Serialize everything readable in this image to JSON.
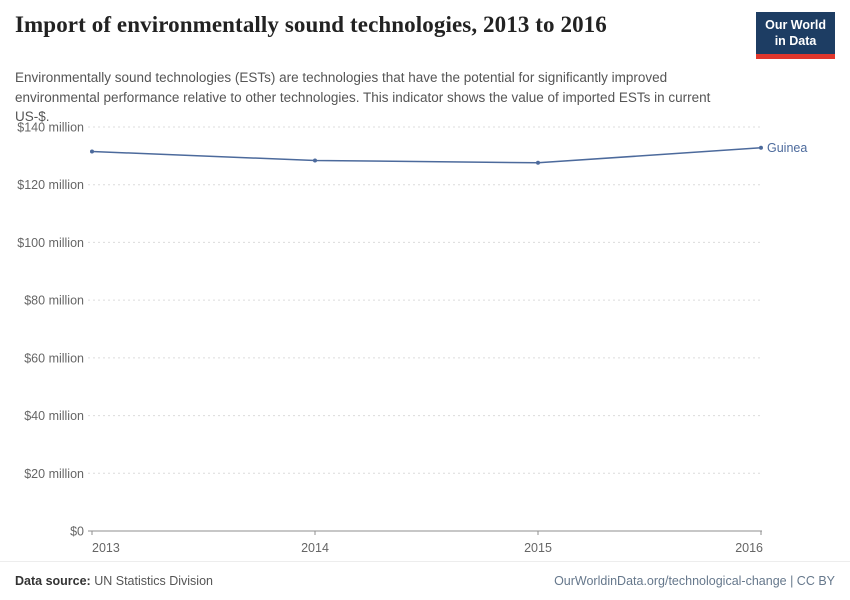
{
  "header": {
    "title": "Import of environmentally sound technologies, 2013 to 2016",
    "subtitle": "Environmentally sound technologies (ESTs) are technologies that have the potential for significantly improved environmental performance relative to other technologies. This indicator shows the value of imported ESTs in current US-$.",
    "logo": {
      "line1": "Our World",
      "line2": "in Data"
    }
  },
  "chart_data": {
    "type": "line",
    "title": "Import of environmentally sound technologies, 2013 to 2016",
    "x": [
      2013,
      2014,
      2015,
      2016
    ],
    "xtick_labels": [
      "2013",
      "2014",
      "2015",
      "2016"
    ],
    "series": [
      {
        "name": "Guinea",
        "values": [
          131.5,
          128.4,
          127.6,
          132.8
        ],
        "color": "#4C6A9C"
      }
    ],
    "unit": "million US-$",
    "ylim": [
      0,
      140
    ],
    "ytick_step": 20,
    "ytick_labels": [
      "$0",
      "$20 million",
      "$40 million",
      "$60 million",
      "$80 million",
      "$100 million",
      "$120 million",
      "$140 million"
    ],
    "grid": "dashed horizontal",
    "legend_position": "end-of-line label",
    "colors": {
      "grid": "#dcdcdc",
      "axis": "#8f8f8f",
      "tick_text": "#666666"
    }
  },
  "footer": {
    "source_label": "Data source:",
    "source_value": " UN Statistics Division",
    "credit": "OurWorldinData.org/technological-change | CC BY"
  }
}
